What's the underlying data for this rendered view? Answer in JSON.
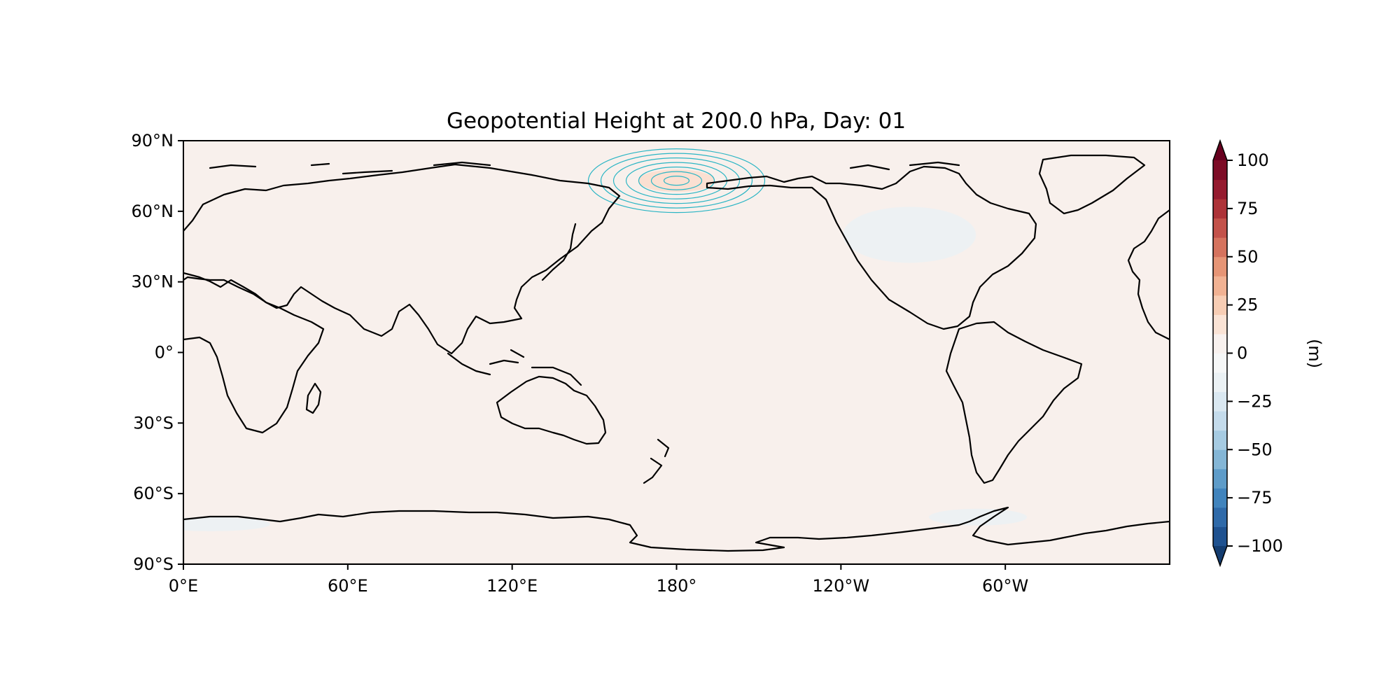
{
  "chart_data": {
    "type": "heatmap",
    "title": "Geopotential Height at 200.0 hPa, Day: 01",
    "projection": "PlateCarree (central longitude 180°)",
    "background_value": 3,
    "x_ticks": [
      "0°E",
      "60°E",
      "120°E",
      "180°",
      "120°W",
      "60°W"
    ],
    "x_tick_lons": [
      0,
      60,
      120,
      180,
      240,
      300
    ],
    "lon_range": [
      0,
      360
    ],
    "y_ticks": [
      "90°N",
      "60°N",
      "30°N",
      "0°",
      "30°S",
      "60°S",
      "90°S"
    ],
    "y_tick_lats": [
      90,
      60,
      30,
      0,
      -30,
      -60,
      -90
    ],
    "lat_range": [
      -90,
      90
    ],
    "anomalies": [
      {
        "label": "positive height anomaly over Bering Strait",
        "lon": 180,
        "lat": 73,
        "value": 15,
        "fill": "#fbe0d2"
      },
      {
        "label": "negative anomaly over North America",
        "lon": 265,
        "lat": 50,
        "value": -5,
        "fill": "#edf1f3"
      },
      {
        "label": "negative anomaly, Southern Ocean (Atlantic sector)",
        "lon": 10,
        "lat": -73,
        "value": -5,
        "fill": "#edf1f3"
      },
      {
        "label": "negative anomaly, Southern Ocean (Pacific sector)",
        "lon": 290,
        "lat": -70,
        "value": -5,
        "fill": "#edf1f3"
      }
    ],
    "contour_overlay": {
      "center_lon": 180,
      "center_lat": 73,
      "levels": 7,
      "color": "#2bb5c4"
    },
    "colorbar": {
      "label": "(m)",
      "levels": [
        -100,
        -90,
        -80,
        -70,
        -60,
        -50,
        -40,
        -30,
        -20,
        -10,
        0,
        10,
        20,
        30,
        40,
        50,
        60,
        70,
        80,
        90,
        100
      ],
      "colors": [
        "#1f5290",
        "#2f6aa9",
        "#4184bd",
        "#5e9cc9",
        "#84b6d6",
        "#a6cbe2",
        "#c4dbeb",
        "#dae8f1",
        "#ebf1f4",
        "#f6f7f7",
        "#f8f1ee",
        "#fae3d5",
        "#f7cdb4",
        "#f1b293",
        "#e69576",
        "#d5735e",
        "#c3524a",
        "#ad3338",
        "#951b2f",
        "#7d0c26"
      ],
      "extend_low_color": "#143d70",
      "extend_high_color": "#67001f",
      "tick_labels": [
        "100",
        "75",
        "50",
        "25",
        "0",
        "−25",
        "−50",
        "−75",
        "−100"
      ],
      "tick_values": [
        100,
        75,
        50,
        25,
        0,
        -25,
        -50,
        -75,
        -100
      ]
    }
  }
}
